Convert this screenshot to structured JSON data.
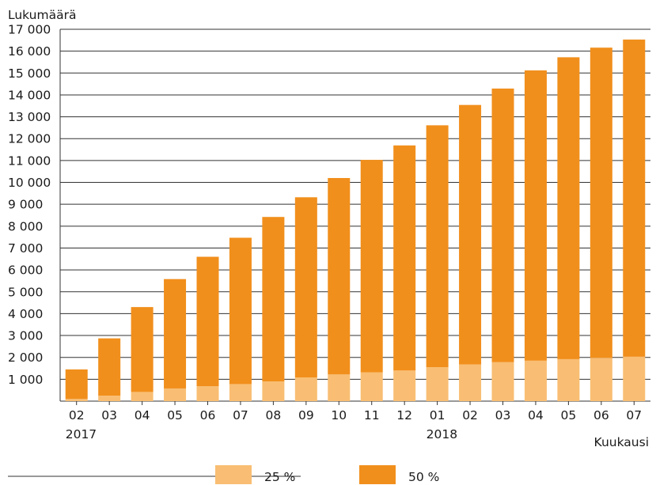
{
  "colors": {
    "series_25": "#F9BE73",
    "series_50": "#F18F1C",
    "grid": "#333333",
    "text": "#1a1a1a"
  },
  "chart_data": {
    "type": "bar",
    "stacked": true,
    "ylabel": "Lukumäärä",
    "xlabel": "Kuukausi",
    "ylim": [
      0,
      17000
    ],
    "ytick_values": [
      1000,
      2000,
      3000,
      4000,
      5000,
      6000,
      7000,
      8000,
      9000,
      10000,
      11000,
      12000,
      13000,
      14000,
      15000,
      16000,
      17000
    ],
    "ytick_labels": [
      "1 000",
      "2 000",
      "3 000",
      "4 000",
      "5 000",
      "6 000",
      "7 000",
      "8 000",
      "9 000",
      "10 000",
      "11 000",
      "12 000",
      "13 000",
      "14 000",
      "15 000",
      "16 000",
      "17 000"
    ],
    "categories": [
      "02",
      "03",
      "04",
      "05",
      "06",
      "07",
      "08",
      "09",
      "10",
      "11",
      "12",
      "01",
      "02",
      "03",
      "04",
      "05",
      "06",
      "07"
    ],
    "year_labels": [
      {
        "category_index": 0,
        "label": "2017"
      },
      {
        "category_index": 11,
        "label": "2018"
      }
    ],
    "grid": true,
    "legend_position": "bottom",
    "series": [
      {
        "name": "25 %",
        "color": "#F9BE73",
        "values": [
          100,
          250,
          420,
          580,
          680,
          780,
          900,
          1080,
          1220,
          1320,
          1400,
          1550,
          1680,
          1780,
          1850,
          1920,
          1980,
          2030
        ]
      },
      {
        "name": "50 %",
        "color": "#F18F1C",
        "values": [
          1350,
          2620,
          3880,
          5000,
          5920,
          6690,
          7520,
          8240,
          8980,
          9710,
          10290,
          11060,
          11860,
          12510,
          13270,
          13800,
          14180,
          14500
        ]
      }
    ]
  }
}
